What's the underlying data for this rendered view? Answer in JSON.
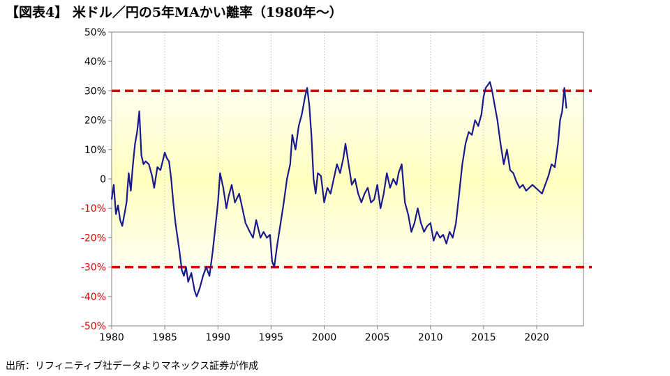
{
  "title": "【図表4】 米ドル／円の5年MAかい離率（1980年〜）",
  "source": "出所：リフィニティブ社データよりマネックス証券が作成",
  "colors": {
    "line": "#1a1a8c",
    "reference": "#e00000",
    "negative_tick": "#e00000",
    "positive_tick": "#000000",
    "band_center": "#ffffc0",
    "band_edge": "#fffff0"
  },
  "chart_data": {
    "type": "line",
    "title": "",
    "xlabel": "",
    "ylabel": "",
    "xlim": [
      1980,
      2024.4
    ],
    "ylim": [
      -50,
      50
    ],
    "x_ticks": [
      "1980",
      "1985",
      "1990",
      "1995",
      "2000",
      "2005",
      "2010",
      "2015",
      "2020"
    ],
    "y_ticks": [
      "50%",
      "40%",
      "30%",
      "20%",
      "10%",
      "0",
      "-10%",
      "-20%",
      "-30%",
      "-40%",
      "-50%"
    ],
    "reference_lines": [
      30,
      -30
    ],
    "grid": "vertical-dotted",
    "x": [
      1980.0,
      1980.2,
      1980.4,
      1980.6,
      1980.8,
      1981.0,
      1981.2,
      1981.4,
      1981.6,
      1981.8,
      1982.0,
      1982.2,
      1982.4,
      1982.6,
      1982.8,
      1983.0,
      1983.2,
      1983.5,
      1983.8,
      1984.0,
      1984.3,
      1984.6,
      1985.0,
      1985.2,
      1985.4,
      1985.6,
      1985.8,
      1986.0,
      1986.2,
      1986.4,
      1986.6,
      1986.8,
      1987.0,
      1987.2,
      1987.5,
      1987.8,
      1988.0,
      1988.3,
      1988.6,
      1988.9,
      1989.2,
      1989.5,
      1989.8,
      1990.0,
      1990.2,
      1990.5,
      1990.8,
      1991.0,
      1991.3,
      1991.6,
      1992.0,
      1992.3,
      1992.6,
      1993.0,
      1993.3,
      1993.6,
      1994.0,
      1994.3,
      1994.6,
      1994.9,
      1995.1,
      1995.3,
      1995.6,
      1995.9,
      1996.2,
      1996.5,
      1996.8,
      1997.0,
      1997.3,
      1997.6,
      1997.9,
      1998.2,
      1998.4,
      1998.6,
      1998.8,
      1999.0,
      1999.2,
      1999.4,
      1999.7,
      2000.0,
      2000.3,
      2000.6,
      2000.9,
      2001.2,
      2001.5,
      2001.8,
      2002.0,
      2002.3,
      2002.6,
      2002.9,
      2003.2,
      2003.5,
      2003.8,
      2004.1,
      2004.4,
      2004.7,
      2005.0,
      2005.3,
      2005.6,
      2005.9,
      2006.2,
      2006.5,
      2006.8,
      2007.0,
      2007.3,
      2007.6,
      2007.9,
      2008.2,
      2008.5,
      2008.8,
      2009.1,
      2009.4,
      2009.7,
      2010.0,
      2010.3,
      2010.6,
      2010.9,
      2011.2,
      2011.5,
      2011.8,
      2012.1,
      2012.4,
      2012.7,
      2013.0,
      2013.3,
      2013.6,
      2013.9,
      2014.2,
      2014.5,
      2014.8,
      2015.0,
      2015.2,
      2015.4,
      2015.6,
      2015.8,
      2016.0,
      2016.3,
      2016.6,
      2016.9,
      2017.2,
      2017.5,
      2017.8,
      2018.1,
      2018.4,
      2018.7,
      2019.0,
      2019.3,
      2019.6,
      2019.9,
      2020.2,
      2020.5,
      2020.8,
      2021.1,
      2021.4,
      2021.7,
      2022.0,
      2022.2,
      2022.4,
      2022.6,
      2022.8
    ],
    "series": [
      {
        "values": [
          -7,
          -2,
          -12,
          -9,
          -14,
          -16,
          -12,
          -8,
          2,
          -4,
          5,
          12,
          16,
          23,
          8,
          5,
          6,
          5,
          1,
          -3,
          4,
          3,
          9,
          7,
          6,
          0,
          -8,
          -15,
          -20,
          -25,
          -31,
          -33,
          -30,
          -35,
          -32,
          -38,
          -40,
          -37,
          -33,
          -30,
          -33,
          -25,
          -15,
          -8,
          2,
          -3,
          -10,
          -6,
          -2,
          -8,
          -5,
          -10,
          -15,
          -18,
          -20,
          -14,
          -20,
          -18,
          -20,
          -19,
          -28,
          -30,
          -22,
          -15,
          -8,
          0,
          5,
          15,
          10,
          18,
          22,
          28,
          31,
          25,
          15,
          0,
          -5,
          2,
          1,
          -8,
          -3,
          -5,
          0,
          5,
          2,
          7,
          12,
          5,
          -2,
          0,
          -5,
          -8,
          -5,
          -3,
          -8,
          -7,
          -2,
          -10,
          -5,
          2,
          -3,
          0,
          -2,
          2,
          5,
          -8,
          -12,
          -18,
          -15,
          -10,
          -15,
          -18,
          -16,
          -15,
          -21,
          -18,
          -20,
          -19,
          -22,
          -18,
          -20,
          -15,
          -5,
          5,
          12,
          16,
          15,
          20,
          18,
          22,
          28,
          31,
          32,
          33,
          30,
          26,
          20,
          12,
          5,
          10,
          3,
          2,
          -1,
          -3,
          -2,
          -4,
          -3,
          -2,
          -3,
          -4,
          -5,
          -2,
          1,
          5,
          4,
          12,
          20,
          23,
          31,
          24
        ]
      }
    ]
  }
}
